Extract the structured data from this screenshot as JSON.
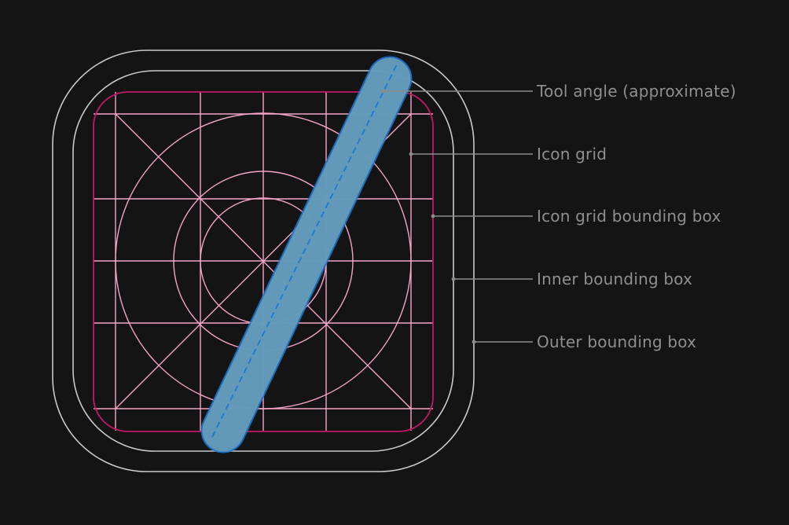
{
  "colors": {
    "background": "#141414",
    "bounding_box": "#c9c9c9",
    "icon_grid_box": "#c3176a",
    "icon_grid": "#f5a3c7",
    "tool_fill": "#6fa1b8",
    "tool_stroke": "#1f78d6",
    "leader": "#8c8c8c",
    "label": "#8f8f8f"
  },
  "labels": {
    "tool_angle": "Tool angle (approximate)",
    "icon_grid": "Icon grid",
    "icon_grid_bounding_box": "Icon grid bounding box",
    "inner_bounding_box": "Inner bounding box",
    "outer_bounding_box": "Outer bounding box"
  }
}
